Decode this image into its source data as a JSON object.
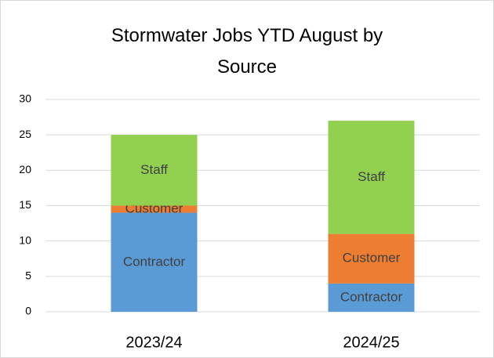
{
  "chart_data": {
    "type": "stacked_bar",
    "title": "Stormwater Jobs YTD August by Source",
    "categories": [
      "2023/24",
      "2024/25"
    ],
    "series": [
      {
        "name": "Contractor",
        "color": "#5b9bd5",
        "values": [
          14,
          4
        ]
      },
      {
        "name": "Customer",
        "color": "#ed7d31",
        "values": [
          1,
          7
        ]
      },
      {
        "name": "Staff",
        "color": "#92d050",
        "values": [
          10,
          16
        ]
      }
    ],
    "ylim": [
      0,
      30
    ],
    "yticks": [
      0,
      5,
      10,
      15,
      20,
      25,
      30
    ],
    "grid": true
  }
}
